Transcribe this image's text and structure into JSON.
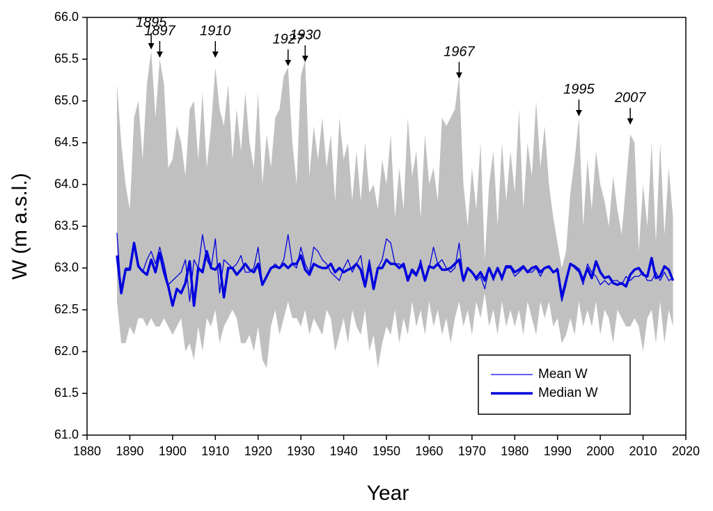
{
  "chart_data": {
    "type": "line",
    "xlabel": "Year",
    "ylabel": "W (m a.s.l.)",
    "xlim": [
      1880,
      2020
    ],
    "xticks": [
      1880,
      1890,
      1900,
      1910,
      1920,
      1930,
      1940,
      1950,
      1960,
      1970,
      1980,
      1990,
      2000,
      2010,
      2020
    ],
    "ylim": [
      61,
      66
    ],
    "yticks": [
      {
        "value": 61,
        "label": "61.0"
      },
      {
        "value": 61.5,
        "label": "61.5"
      },
      {
        "value": 62,
        "label": "62.0"
      },
      {
        "value": 62.5,
        "label": "62.5"
      },
      {
        "value": 63,
        "label": "63.0"
      },
      {
        "value": 63.5,
        "label": "63.5"
      },
      {
        "value": 64,
        "label": "64.0"
      },
      {
        "value": 64.5,
        "label": "64.5"
      },
      {
        "value": 65,
        "label": "65.0"
      },
      {
        "value": 65.5,
        "label": "65.5"
      },
      {
        "value": 66,
        "label": "66.0"
      }
    ],
    "legend": "lower right",
    "x": [
      1887,
      1888,
      1889,
      1890,
      1891,
      1892,
      1893,
      1894,
      1895,
      1896,
      1897,
      1898,
      1899,
      1900,
      1901,
      1902,
      1903,
      1904,
      1905,
      1906,
      1907,
      1908,
      1909,
      1910,
      1911,
      1912,
      1913,
      1914,
      1915,
      1916,
      1917,
      1918,
      1919,
      1920,
      1921,
      1922,
      1923,
      1924,
      1925,
      1926,
      1927,
      1928,
      1929,
      1930,
      1931,
      1932,
      1933,
      1934,
      1935,
      1936,
      1937,
      1938,
      1939,
      1940,
      1941,
      1942,
      1943,
      1944,
      1945,
      1946,
      1947,
      1948,
      1949,
      1950,
      1951,
      1952,
      1953,
      1954,
      1955,
      1956,
      1957,
      1958,
      1959,
      1960,
      1961,
      1962,
      1963,
      1964,
      1965,
      1966,
      1967,
      1968,
      1969,
      1970,
      1971,
      1972,
      1973,
      1974,
      1975,
      1976,
      1977,
      1978,
      1979,
      1980,
      1981,
      1982,
      1983,
      1984,
      1985,
      1986,
      1987,
      1988,
      1989,
      1990,
      1991,
      1992,
      1993,
      1994,
      1995,
      1996,
      1997,
      1998,
      1999,
      2000,
      2001,
      2002,
      2003,
      2004,
      2005,
      2006,
      2007,
      2008,
      2009,
      2010,
      2011,
      2012,
      2013,
      2014,
      2015,
      2016,
      2017
    ],
    "band": {
      "color": "#c0c0c0",
      "upper": [
        65.2,
        64.5,
        64.0,
        63.7,
        64.8,
        65.0,
        64.3,
        65.2,
        65.6,
        64.8,
        65.5,
        65.2,
        64.2,
        64.3,
        64.7,
        64.5,
        64.1,
        64.9,
        65.0,
        64.3,
        65.1,
        64.2,
        64.7,
        65.4,
        64.9,
        64.7,
        65.2,
        64.3,
        64.9,
        64.4,
        65.1,
        64.5,
        64.2,
        65.1,
        64.0,
        64.6,
        64.2,
        64.8,
        64.9,
        65.3,
        65.4,
        64.5,
        64.0,
        65.3,
        65.5,
        64.1,
        64.7,
        64.3,
        64.8,
        64.2,
        64.6,
        63.8,
        64.8,
        64.3,
        64.5,
        63.8,
        64.4,
        63.8,
        64.5,
        63.9,
        64.0,
        63.7,
        64.3,
        64.0,
        64.6,
        63.6,
        64.2,
        63.7,
        64.8,
        64.1,
        64.4,
        63.6,
        64.6,
        64.0,
        64.2,
        63.8,
        64.8,
        64.7,
        64.8,
        64.9,
        65.3,
        64.0,
        63.5,
        64.2,
        63.7,
        64.5,
        63.1,
        64.0,
        64.4,
        63.5,
        64.5,
        63.8,
        64.4,
        63.9,
        64.9,
        63.7,
        64.5,
        64.1,
        65.0,
        64.2,
        64.7,
        64.0,
        63.6,
        63.3,
        63.0,
        63.2,
        63.9,
        64.3,
        64.8,
        63.5,
        64.3,
        63.7,
        64.4,
        64.0,
        63.8,
        63.5,
        64.1,
        63.7,
        63.4,
        64.0,
        64.6,
        64.5,
        63.2,
        64.0,
        63.5,
        64.5,
        63.3,
        64.5,
        63.4,
        64.2,
        63.6
      ],
      "lower": [
        62.6,
        62.1,
        62.1,
        62.3,
        62.2,
        62.4,
        62.4,
        62.3,
        62.4,
        62.3,
        62.3,
        62.4,
        62.3,
        62.2,
        62.3,
        62.4,
        62.0,
        62.1,
        61.9,
        62.3,
        62.0,
        62.4,
        62.3,
        62.5,
        62.1,
        62.3,
        62.4,
        62.5,
        62.4,
        62.1,
        62.1,
        62.2,
        62.0,
        62.3,
        61.9,
        61.8,
        62.3,
        62.5,
        62.2,
        62.4,
        62.6,
        62.4,
        62.4,
        62.3,
        62.5,
        62.2,
        62.4,
        62.3,
        62.2,
        62.5,
        62.4,
        62.0,
        62.2,
        62.4,
        62.1,
        62.5,
        62.3,
        62.2,
        62.5,
        62.0,
        62.2,
        61.8,
        62.1,
        62.3,
        62.2,
        62.5,
        62.1,
        62.4,
        62.2,
        62.6,
        62.3,
        62.5,
        62.2,
        62.6,
        62.3,
        62.5,
        62.2,
        62.4,
        62.1,
        62.4,
        62.6,
        62.3,
        62.5,
        62.2,
        62.6,
        62.4,
        62.7,
        62.3,
        62.5,
        62.2,
        62.6,
        62.3,
        62.5,
        62.3,
        62.5,
        62.2,
        62.6,
        62.4,
        62.2,
        62.6,
        62.4,
        62.6,
        62.3,
        62.4,
        62.1,
        62.2,
        62.4,
        62.2,
        62.6,
        62.3,
        62.5,
        62.3,
        62.6,
        62.2,
        62.5,
        62.4,
        62.1,
        62.5,
        62.4,
        62.3,
        62.3,
        62.4,
        62.3,
        62.0,
        62.4,
        62.5,
        62.1,
        62.6,
        62.1,
        62.5,
        62.3
      ]
    },
    "series": [
      {
        "name": "Mean W",
        "color": "#0000dd",
        "width": 1.3,
        "values": [
          63.42,
          62.7,
          63.0,
          63.0,
          63.25,
          63.05,
          62.95,
          63.1,
          63.2,
          63.05,
          63.25,
          63.05,
          62.8,
          62.85,
          62.9,
          62.95,
          63.1,
          62.6,
          63.1,
          63.0,
          63.4,
          63.1,
          63.0,
          63.35,
          62.7,
          63.1,
          63.05,
          63.0,
          63.05,
          63.15,
          62.95,
          62.95,
          63.0,
          63.25,
          62.8,
          62.9,
          63.0,
          63.05,
          63.0,
          63.1,
          63.4,
          63.05,
          63.0,
          63.25,
          63.05,
          62.95,
          63.25,
          63.2,
          63.1,
          63.05,
          62.95,
          62.9,
          62.85,
          63.0,
          63.1,
          62.95,
          63.05,
          63.15,
          62.8,
          63.1,
          62.75,
          63.0,
          63.1,
          63.35,
          63.3,
          63.05,
          63.05,
          63.0,
          62.9,
          62.95,
          62.9,
          63.1,
          62.85,
          63.0,
          63.25,
          63.05,
          63.1,
          63.0,
          62.95,
          63.0,
          63.3,
          62.85,
          63.0,
          62.95,
          62.85,
          62.9,
          62.75,
          63.0,
          62.85,
          63.0,
          62.85,
          63.0,
          63.0,
          62.9,
          62.95,
          63.0,
          62.95,
          62.95,
          63.0,
          62.9,
          63.0,
          63.0,
          62.95,
          63.0,
          62.6,
          62.8,
          63.05,
          63.0,
          62.95,
          62.8,
          63.05,
          62.95,
          62.9,
          62.8,
          62.85,
          62.8,
          62.85,
          62.85,
          62.8,
          62.9,
          62.85,
          62.9,
          62.9,
          62.95,
          62.85,
          62.85,
          62.95,
          62.85,
          62.95,
          62.85,
          62.88
        ]
      },
      {
        "name": "Median W",
        "color": "#0000dd",
        "width": 3.5,
        "values": [
          63.15,
          62.7,
          62.98,
          62.98,
          63.3,
          63.02,
          62.96,
          62.92,
          63.1,
          62.95,
          63.18,
          62.95,
          62.78,
          62.55,
          62.75,
          62.7,
          62.82,
          63.08,
          62.55,
          63.0,
          62.95,
          63.2,
          63.0,
          62.98,
          63.05,
          62.65,
          63.0,
          63.0,
          62.92,
          62.98,
          63.05,
          62.98,
          62.95,
          63.05,
          62.8,
          62.9,
          63.0,
          63.02,
          63.0,
          63.05,
          63.0,
          63.05,
          63.05,
          63.15,
          62.98,
          62.92,
          63.05,
          63.02,
          63.0,
          63.0,
          63.05,
          62.95,
          63.0,
          62.95,
          62.98,
          63.0,
          63.05,
          62.98,
          62.78,
          63.05,
          62.75,
          63.0,
          63.0,
          63.1,
          63.05,
          63.05,
          63.0,
          63.05,
          62.85,
          62.98,
          62.92,
          63.05,
          62.85,
          63.02,
          63.0,
          63.05,
          62.98,
          62.98,
          63.0,
          63.05,
          63.1,
          62.85,
          63.0,
          62.95,
          62.88,
          62.95,
          62.85,
          63.0,
          62.88,
          63.0,
          62.88,
          63.02,
          63.02,
          62.95,
          62.98,
          63.02,
          62.95,
          63.0,
          63.02,
          62.95,
          63.0,
          63.02,
          62.95,
          62.98,
          62.65,
          62.85,
          63.05,
          63.02,
          62.98,
          62.85,
          63.0,
          62.88,
          63.08,
          62.95,
          62.88,
          62.9,
          62.82,
          62.8,
          62.82,
          62.78,
          62.92,
          62.98,
          63.0,
          62.92,
          62.9,
          63.12,
          62.88,
          62.9,
          63.02,
          62.98,
          62.85
        ]
      }
    ],
    "annotations": [
      {
        "text": "1895",
        "x": 1895,
        "y": 65.6
      },
      {
        "text": "1897",
        "x": 1897,
        "y": 65.5
      },
      {
        "text": "1910",
        "x": 1910,
        "y": 65.5
      },
      {
        "text": "1927",
        "x": 1927,
        "y": 65.4
      },
      {
        "text": "1930",
        "x": 1931,
        "y": 65.45
      },
      {
        "text": "1967",
        "x": 1967,
        "y": 65.25
      },
      {
        "text": "1995",
        "x": 1995,
        "y": 64.8
      },
      {
        "text": "2007",
        "x": 2007,
        "y": 64.7
      }
    ]
  }
}
